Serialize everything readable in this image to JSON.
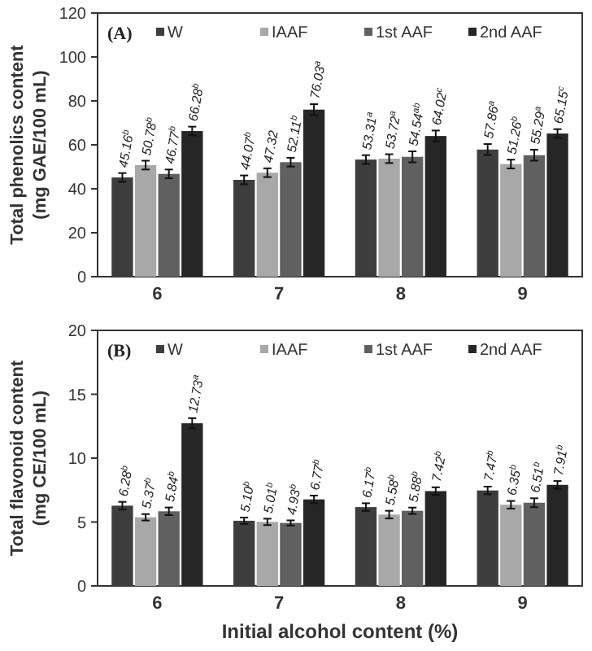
{
  "chart_data": [
    {
      "type": "bar",
      "title": "(A)",
      "ylabel": "Total phenolics content\n(mg GAE/100 mL)",
      "categories": [
        "6",
        "7",
        "8",
        "9"
      ],
      "ylim": [
        0,
        120
      ],
      "yticks": [
        0,
        20,
        40,
        60,
        80,
        100,
        120
      ],
      "legend": "top",
      "grid": false,
      "series": [
        {
          "name": "W",
          "color": "#3d3d3d",
          "values": [
            45.16,
            44.07,
            53.31,
            57.86
          ],
          "errors": [
            2,
            2,
            2,
            2.5
          ],
          "value_labels": [
            "45.16$^{b}$",
            "44.07$^{b}$",
            "53.31$^{a}$",
            "57.86$^{a}$"
          ]
        },
        {
          "name": "IAAF",
          "color": "#a8a8a8",
          "values": [
            50.78,
            47.32,
            53.72,
            51.26
          ],
          "errors": [
            2,
            2,
            2,
            2
          ],
          "value_labels": [
            "50.78$^{b}$",
            "47.32",
            "53.72$^{a}$",
            "51.26$^{b}$"
          ]
        },
        {
          "name": "1st AAF",
          "color": "#606060",
          "values": [
            46.77,
            52.11,
            54.54,
            55.29
          ],
          "errors": [
            2,
            2,
            2.5,
            2.5
          ],
          "value_labels": [
            "46.77$^{b}$",
            "52.11$^{b}$",
            "54.54$^{ab}$",
            "55.29$^{a}$"
          ]
        },
        {
          "name": "2nd AAF",
          "color": "#262626",
          "values": [
            66.28,
            76.03,
            64.02,
            65.15
          ],
          "errors": [
            2,
            2.5,
            2.5,
            2
          ],
          "value_labels": [
            "66.28$^{b}$",
            "76.03$^{a}$",
            "64.02$^{c}$",
            "65.15$^{c}$"
          ]
        }
      ]
    },
    {
      "type": "bar",
      "title": "(B)",
      "xlabel": "Initial alcohol content (%)",
      "ylabel": "Total  flavonoid content\n(mg CE/100 mL)",
      "categories": [
        "6",
        "7",
        "8",
        "9"
      ],
      "ylim": [
        0,
        20
      ],
      "yticks": [
        0,
        5,
        10,
        15,
        20
      ],
      "legend": "top",
      "grid": false,
      "series": [
        {
          "name": "W",
          "color": "#3d3d3d",
          "values": [
            6.28,
            5.1,
            6.17,
            7.47
          ],
          "errors": [
            0.3,
            0.25,
            0.3,
            0.3
          ],
          "value_labels": [
            "6.28$^{b}$",
            "5.10$^{b}$",
            "6.17$^{b}$",
            "7.47$^{b}$"
          ]
        },
        {
          "name": "IAAF",
          "color": "#a8a8a8",
          "values": [
            5.37,
            5.01,
            5.58,
            6.35
          ],
          "errors": [
            0.25,
            0.25,
            0.3,
            0.3
          ],
          "value_labels": [
            "5.37$^{b}$",
            "5.01$^{b}$",
            "5.58$^{b}$",
            "6.35$^{b}$"
          ]
        },
        {
          "name": "1st AAF",
          "color": "#606060",
          "values": [
            5.84,
            4.93,
            5.88,
            6.51
          ],
          "errors": [
            0.3,
            0.2,
            0.25,
            0.35
          ],
          "value_labels": [
            "5.84$^{b}$",
            "4.93$^{b}$",
            "5.88$^{b}$",
            "6.51$^{b}$"
          ]
        },
        {
          "name": "2nd AAF",
          "color": "#262626",
          "values": [
            12.73,
            6.77,
            7.42,
            7.91
          ],
          "errors": [
            0.4,
            0.3,
            0.3,
            0.3
          ],
          "value_labels": [
            "12.73$^{a}$",
            "6.77$^{b}$",
            "7.42$^{b}$",
            "7.91$^{b}$"
          ]
        }
      ]
    }
  ]
}
